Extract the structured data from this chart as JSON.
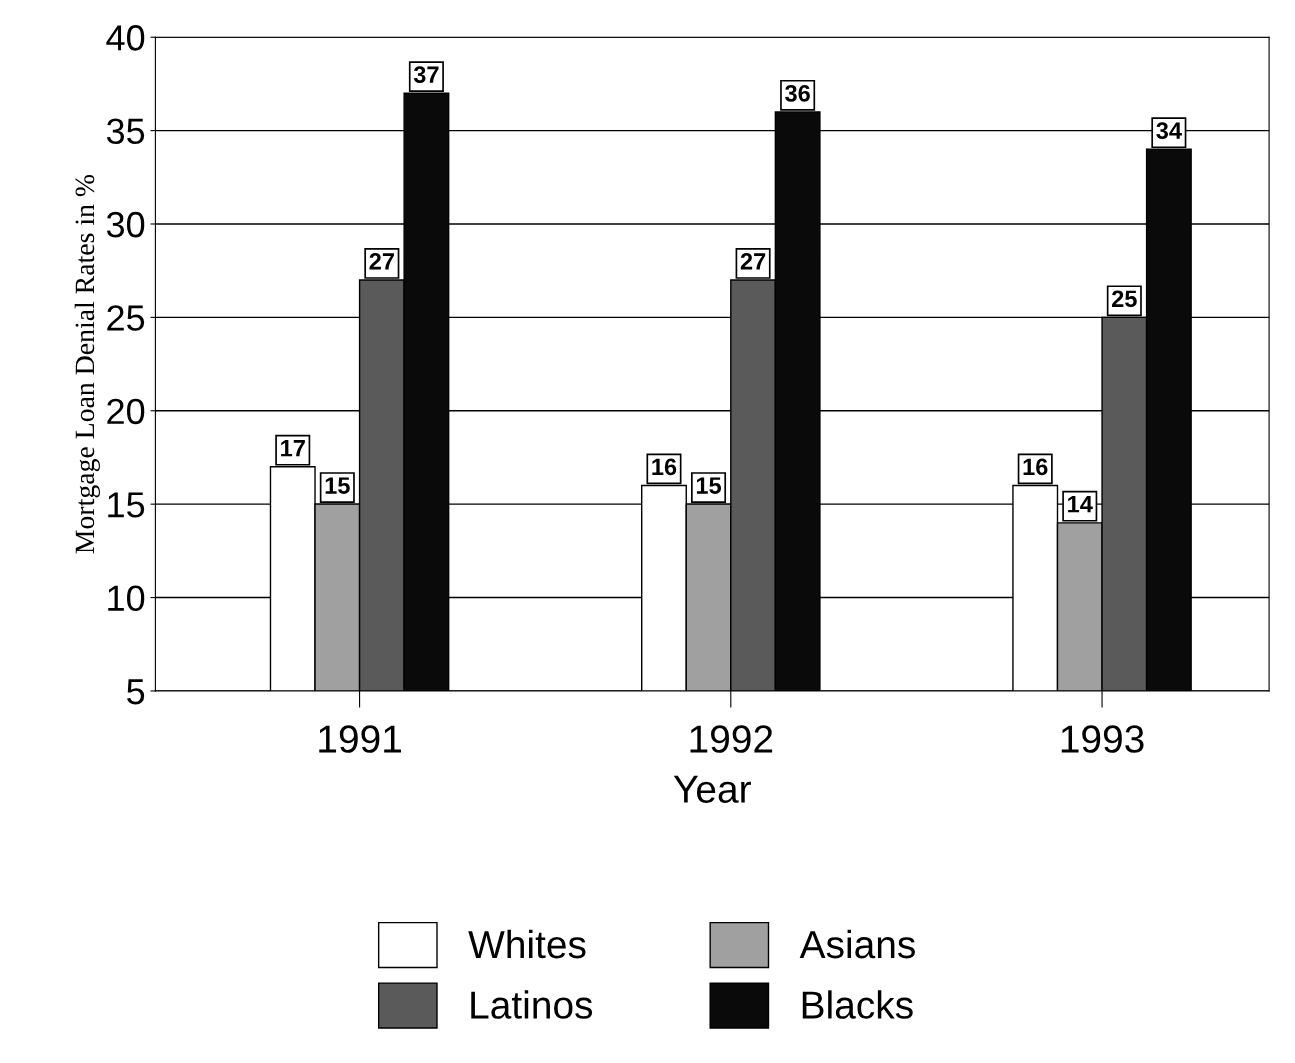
{
  "chart_data": {
    "type": "bar",
    "xlabel": "Year",
    "ylabel": "Mortgage Loan Denial Rates in %",
    "categories": [
      "1991",
      "1992",
      "1993"
    ],
    "series": [
      {
        "name": "Whites",
        "color": "#ffffff",
        "values": [
          17,
          16,
          16
        ]
      },
      {
        "name": "Asians",
        "color": "#a0a0a0",
        "values": [
          15,
          15,
          14
        ]
      },
      {
        "name": "Latinos",
        "color": "#5a5a5a",
        "values": [
          27,
          27,
          25
        ]
      },
      {
        "name": "Blacks",
        "color": "#0a0a0a",
        "values": [
          37,
          36,
          34
        ]
      }
    ],
    "ylim": [
      5,
      40
    ],
    "yticks": [
      5,
      10,
      15,
      20,
      25,
      30,
      35,
      40
    ],
    "grid": "y",
    "legend": "bottom",
    "data_labels": true
  }
}
